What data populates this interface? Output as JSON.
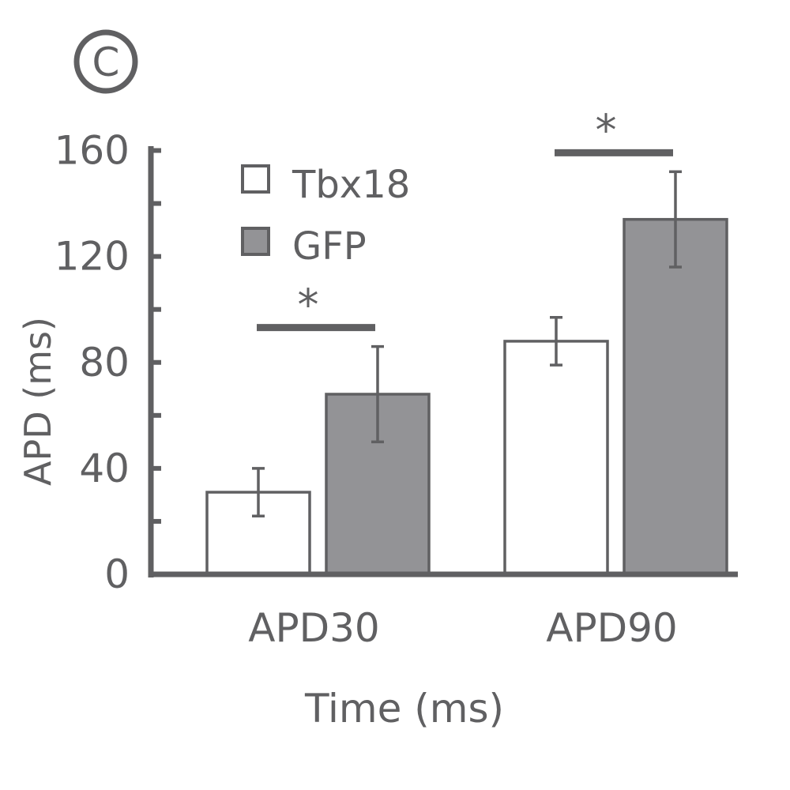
{
  "panel_label": "C",
  "chart_data": {
    "type": "bar",
    "title": "",
    "xlabel": "Time (ms)",
    "ylabel": "APD (ms)",
    "categories": [
      "APD30",
      "APD90"
    ],
    "ylim": [
      0,
      160
    ],
    "yticks": [
      0,
      40,
      80,
      120,
      160
    ],
    "grid": false,
    "legend_position": "top-left",
    "series": [
      {
        "name": "Tbx18",
        "values": [
          31,
          88
        ],
        "errors": [
          9,
          9
        ],
        "color": "#ffffff"
      },
      {
        "name": "GFP",
        "values": [
          68,
          134
        ],
        "errors": [
          18,
          18
        ],
        "color": "#939396"
      }
    ],
    "significance": [
      {
        "category": "APD30",
        "label": "*"
      },
      {
        "category": "APD90",
        "label": "*"
      }
    ],
    "stroke_color": "#606062"
  }
}
